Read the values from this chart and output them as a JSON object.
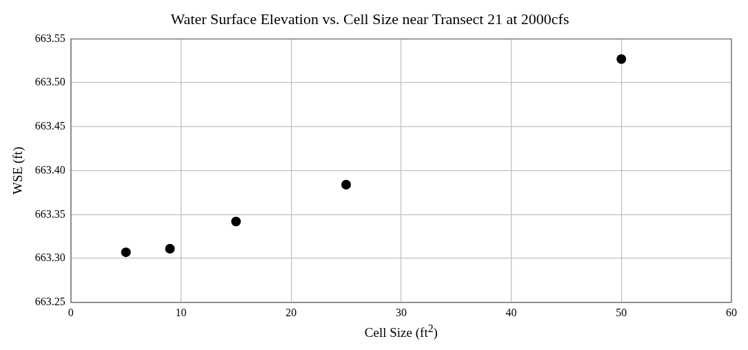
{
  "chart_data": {
    "type": "scatter",
    "title": "Water Surface Elevation vs. Cell Size near Transect 21 at 2000cfs",
    "xlabel": "Cell Size (ft$^{2}$)",
    "ylabel": "WSE (ft)",
    "x": [
      5,
      9,
      15,
      25,
      50
    ],
    "series": [
      {
        "color": "#000000",
        "values": [
          663.307,
          663.311,
          663.342,
          663.384,
          663.527
        ]
      }
    ],
    "xlim": [
      0,
      60
    ],
    "xticks": [
      0,
      10,
      20,
      30,
      40,
      50,
      60
    ],
    "ylim": [
      663.25,
      663.55
    ],
    "yticks": [
      663.25,
      {
        "value": 663.3,
        "label": "663.30"
      },
      663.35,
      {
        "value": 663.4,
        "label": "663.40"
      },
      663.45,
      {
        "value": 663.5,
        "label": "663.50"
      },
      663.55
    ],
    "grid": true,
    "legend": false,
    "marker": "circle"
  }
}
